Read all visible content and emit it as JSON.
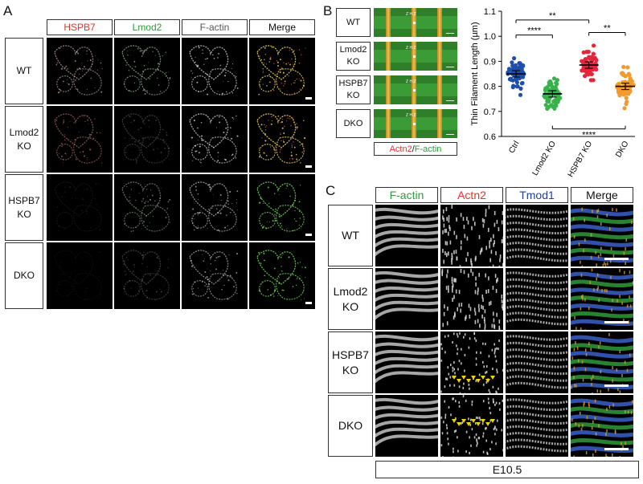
{
  "panelA": {
    "label": "A",
    "columns": [
      {
        "label": "HSPB7",
        "color": "#e8322b"
      },
      {
        "label": "Lmod2",
        "color": "#2e9b3e"
      },
      {
        "label": "F-actin",
        "color": "#555555"
      },
      {
        "label": "Merge",
        "color": "#111111"
      }
    ],
    "rows": [
      "WT",
      "Lmod2\nKO",
      "HSPB7\nKO",
      "DKO"
    ]
  },
  "panelB": {
    "label": "B",
    "rows": [
      "WT",
      "Lmod2\nKO",
      "HSPB7\nKO",
      "DKO"
    ],
    "marker": "Z  H  Z",
    "caption_actn2": "Actn2",
    "caption_sep": "/",
    "caption_factin": "F-actin"
  },
  "panelC": {
    "label": "C",
    "columns": [
      {
        "label": "F-actin",
        "color": "#2e9b3e"
      },
      {
        "label": "Actn2",
        "color": "#e8322b"
      },
      {
        "label": "Tmod1",
        "color": "#1f3e9e"
      },
      {
        "label": "Merge",
        "color": "#111111"
      }
    ],
    "rows": [
      "WT",
      "Lmod2\nKO",
      "HSPB7\nKO",
      "DKO"
    ],
    "footer": "E10.5"
  },
  "chart_data": {
    "type": "scatter",
    "ylabel": "Thin Filament Length (µm)",
    "ylim": [
      0.6,
      1.1
    ],
    "yticks": [
      "0.6",
      "0.7",
      "0.8",
      "0.9",
      "1.0",
      "1.1"
    ],
    "categories": [
      "Ctrl",
      "Lmod2 KO",
      "HSPB7 KO",
      "DKO"
    ],
    "colors": [
      "#1f4fa8",
      "#38b24a",
      "#e3263a",
      "#f29a2e"
    ],
    "means": [
      0.85,
      0.77,
      0.885,
      0.8
    ],
    "significance": [
      {
        "from": 0,
        "to": 2,
        "label": "**",
        "y": 1.065
      },
      {
        "from": 0,
        "to": 1,
        "label": "****",
        "y": 1.005
      },
      {
        "from": 2,
        "to": 3,
        "label": "**",
        "y": 1.015
      },
      {
        "from": 1,
        "to": 3,
        "label": "****",
        "y": 0.63,
        "below": true
      }
    ]
  }
}
